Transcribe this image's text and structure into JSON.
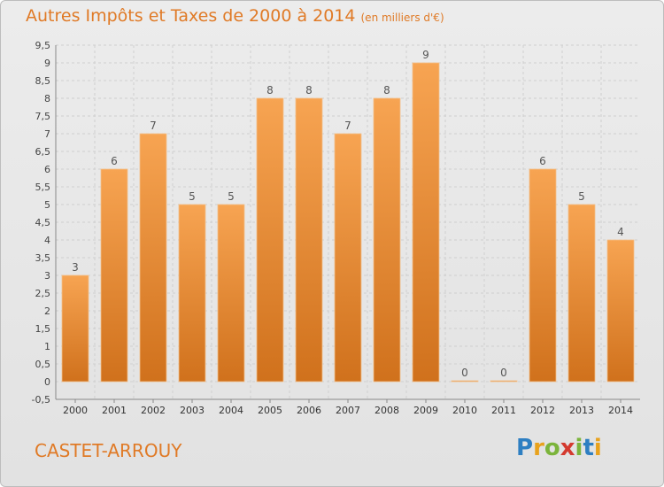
{
  "header": {
    "title": "Autres Impôts et Taxes de 2000 à 2014",
    "subtitle": "(en milliers d'€)"
  },
  "commune": "CASTET-ARROUY",
  "logo": {
    "text": "Proxiti",
    "letters": [
      "P",
      "r",
      "o",
      "x",
      "i",
      "t",
      "i"
    ],
    "colors": [
      "#2e7fc2",
      "#e8a21d",
      "#7bb43b",
      "#d43a2f",
      "#7bb43b",
      "#2e7fc2",
      "#e8a21d"
    ]
  },
  "chart_data": {
    "type": "bar",
    "categories": [
      "2000",
      "2001",
      "2002",
      "2003",
      "2004",
      "2005",
      "2006",
      "2007",
      "2008",
      "2009",
      "2010",
      "2011",
      "2012",
      "2013",
      "2014"
    ],
    "values": [
      3,
      6,
      7,
      5,
      5,
      8,
      8,
      7,
      8,
      9,
      0,
      0,
      6,
      5,
      4
    ],
    "data_labels": [
      "3",
      "6",
      "7",
      "5",
      "5",
      "8",
      "8",
      "7",
      "8",
      "9",
      "0",
      "0",
      "6",
      "5",
      "4"
    ],
    "ylim": [
      -0.5,
      9.5
    ],
    "yticks": [
      "-0,5",
      "0",
      "0,5",
      "1",
      "1,5",
      "2",
      "2,5",
      "3",
      "3,5",
      "4",
      "4,5",
      "5",
      "5,5",
      "6",
      "6,5",
      "7",
      "7,5",
      "8",
      "8,5",
      "9",
      "9,5"
    ],
    "ytick_values": [
      -0.5,
      0,
      0.5,
      1,
      1.5,
      2,
      2.5,
      3,
      3.5,
      4,
      4.5,
      5,
      5.5,
      6,
      6.5,
      7,
      7.5,
      8,
      8.5,
      9,
      9.5
    ],
    "grid": true,
    "bar_color_top": "#f7a452",
    "bar_color_bottom": "#d0711c"
  }
}
